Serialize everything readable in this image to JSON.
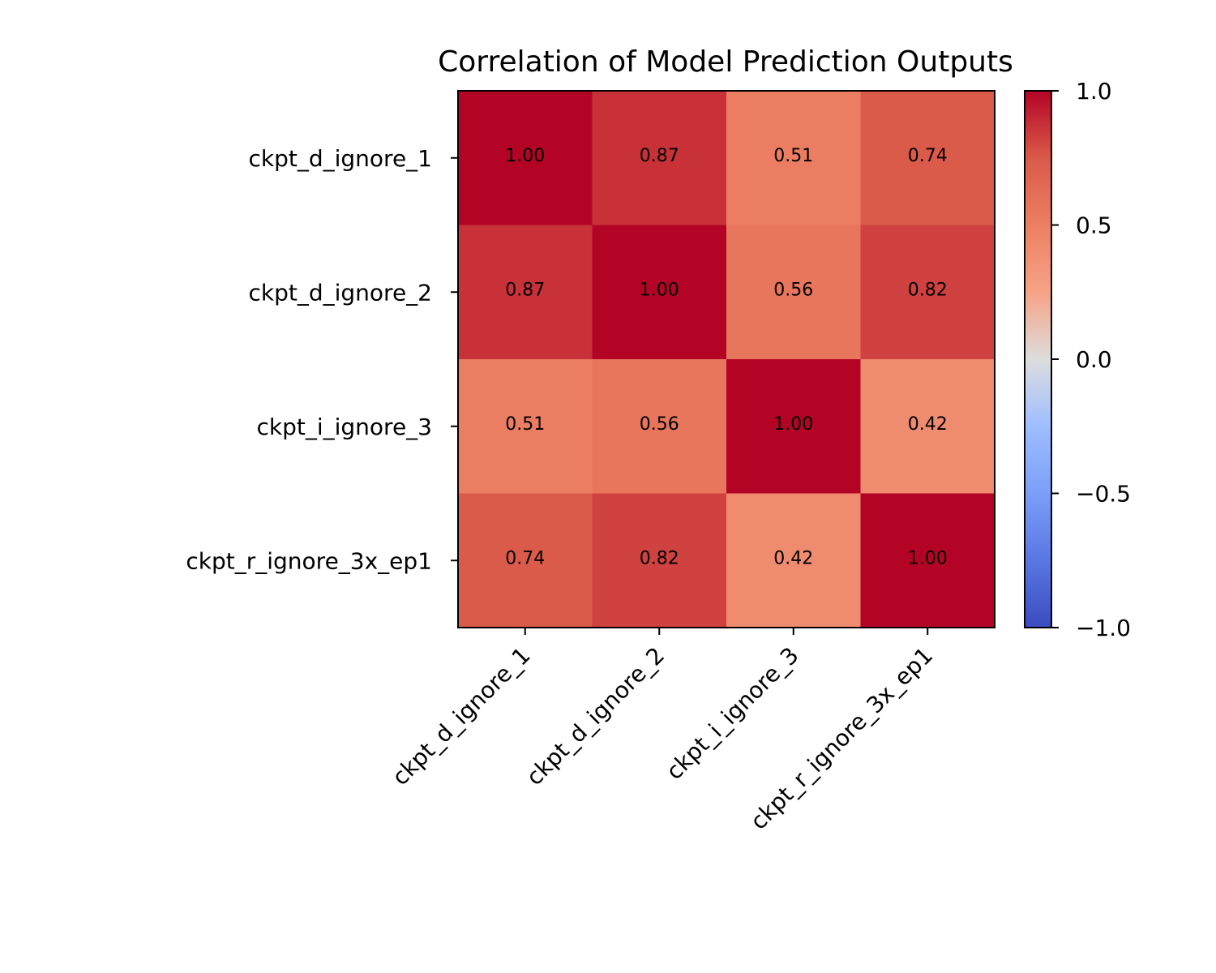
{
  "chart_data": {
    "type": "heatmap",
    "title": "Correlation of Model Prediction Outputs",
    "row_labels": [
      "ckpt_d_ignore_1",
      "ckpt_d_ignore_2",
      "ckpt_i_ignore_3",
      "ckpt_r_ignore_3x_ep1"
    ],
    "col_labels": [
      "ckpt_d_ignore_1",
      "ckpt_d_ignore_2",
      "ckpt_i_ignore_3",
      "ckpt_r_ignore_3x_ep1"
    ],
    "values": [
      [
        1.0,
        0.87,
        0.51,
        0.74
      ],
      [
        0.87,
        1.0,
        0.56,
        0.82
      ],
      [
        0.51,
        0.56,
        1.0,
        0.42
      ],
      [
        0.74,
        0.82,
        0.42,
        1.0
      ]
    ],
    "cell_labels": [
      [
        "1.00",
        "0.87",
        "0.51",
        "0.74"
      ],
      [
        "0.87",
        "1.00",
        "0.56",
        "0.82"
      ],
      [
        "0.51",
        "0.56",
        "1.00",
        "0.42"
      ],
      [
        "0.74",
        "0.82",
        "0.42",
        "1.00"
      ]
    ],
    "colormap": "coolwarm",
    "vmin": -1.0,
    "vmax": 1.0,
    "colorbar_ticks": [
      1.0,
      0.5,
      0.0,
      -0.5,
      -1.0
    ],
    "colorbar_tick_labels": [
      "1.0",
      "0.5",
      "0.0",
      "−0.5",
      "−1.0"
    ],
    "colorbar": true,
    "grid": false
  }
}
